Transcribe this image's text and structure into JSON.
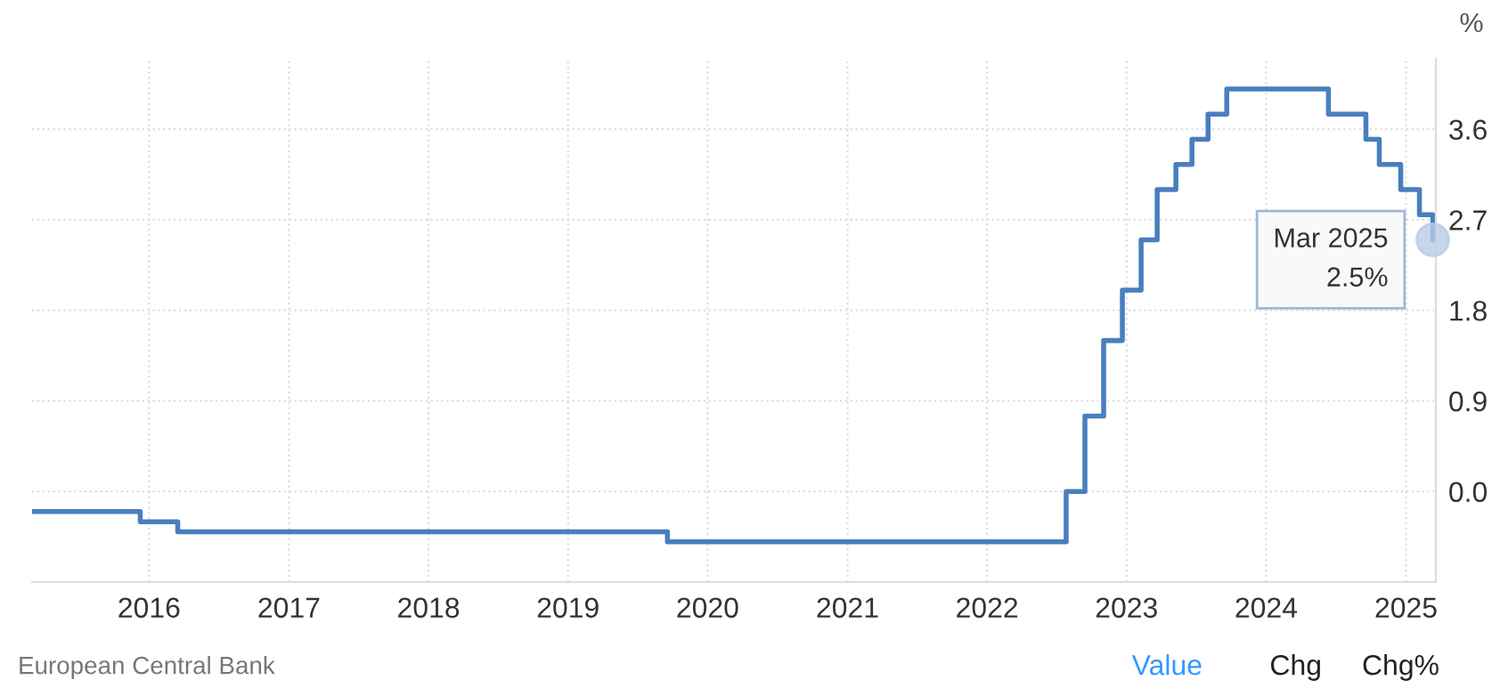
{
  "chart_data": {
    "type": "step",
    "ylabel": "%",
    "series": [
      {
        "color": "#4a7ebf",
        "x": [
          "2015-03-01",
          "2015-12-09",
          "2016-03-16",
          "2019-09-18",
          "2022-07-27",
          "2022-09-14",
          "2022-11-02",
          "2022-12-21",
          "2023-02-08",
          "2023-03-22",
          "2023-05-10",
          "2023-06-21",
          "2023-08-02",
          "2023-09-20",
          "2024-06-12",
          "2024-09-18",
          "2024-10-23",
          "2024-12-18",
          "2025-02-05",
          "2025-03-12"
        ],
        "values": [
          -0.2,
          -0.3,
          -0.4,
          -0.5,
          0.0,
          0.75,
          1.5,
          2.0,
          2.5,
          3.0,
          3.25,
          3.5,
          3.75,
          4.0,
          3.75,
          3.5,
          3.25,
          3.0,
          2.75,
          2.5
        ]
      }
    ],
    "xlim": [
      "2015-03-01",
      "2025-03-20"
    ],
    "xticks": [
      {
        "value": "2016-01-01",
        "label": "2016"
      },
      {
        "value": "2017-01-01",
        "label": "2017"
      },
      {
        "value": "2018-01-01",
        "label": "2018"
      },
      {
        "value": "2019-01-01",
        "label": "2019"
      },
      {
        "value": "2020-01-01",
        "label": "2020"
      },
      {
        "value": "2021-01-01",
        "label": "2021"
      },
      {
        "value": "2022-01-01",
        "label": "2022"
      },
      {
        "value": "2023-01-01",
        "label": "2023"
      },
      {
        "value": "2024-01-01",
        "label": "2024"
      },
      {
        "value": "2025-01-01",
        "label": "2025"
      }
    ],
    "ylim": [
      -0.9,
      4.3
    ],
    "yticks": [
      {
        "value": 0,
        "label": "0.0"
      },
      0.9,
      1.8,
      2.7,
      3.6
    ],
    "grid": true,
    "annotations": [
      {
        "text": "Mar 2025\n2.5%",
        "x": "2025-03-12",
        "y": 2.5
      },
      "European Central Bank",
      "Value",
      "Chg",
      "Chg%"
    ]
  }
}
